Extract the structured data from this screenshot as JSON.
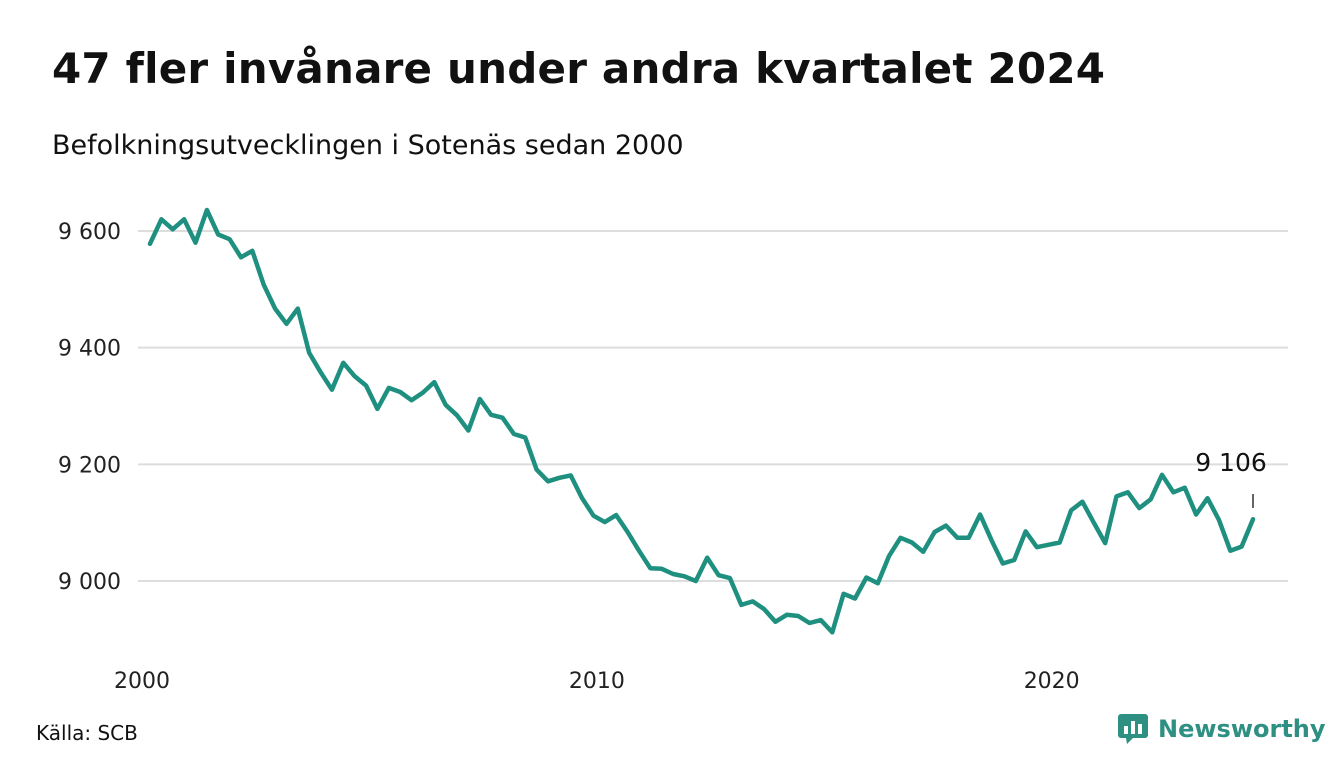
{
  "header": {
    "title": "47 fler invånare under andra kvartalet 2024",
    "subtitle": "Befolkningsutvecklingen i Sotenäs sedan 2000"
  },
  "footer": {
    "source": "Källa: SCB",
    "brand": "Newsworthy"
  },
  "colors": {
    "line": "#1f9080",
    "grid": "#dddddd",
    "brand": "#2e8f83"
  },
  "icons": {
    "brand_logo": "newsworthy-logo-icon"
  },
  "chart_data": {
    "type": "line",
    "x_start_year": 2000,
    "x_quarter_step": 0.25,
    "ylim": [
      8890,
      9660
    ],
    "y_ticks": [
      9000,
      9200,
      9400,
      9600
    ],
    "y_tick_labels": [
      "9 000",
      "9 200",
      "9 400",
      "9 600"
    ],
    "x_ticks": [
      2000,
      2010,
      2020
    ],
    "x_tick_labels": [
      "2000",
      "2010",
      "2020"
    ],
    "grid": true,
    "last_value_label": "9 106",
    "values": [
      9578,
      9620,
      9603,
      9620,
      9580,
      9636,
      9594,
      9586,
      9555,
      9566,
      9508,
      9467,
      9441,
      9467,
      9391,
      9358,
      9328,
      9374,
      9351,
      9335,
      9295,
      9331,
      9324,
      9310,
      9323,
      9341,
      9302,
      9284,
      9258,
      9312,
      9285,
      9280,
      9252,
      9246,
      9191,
      9171,
      9177,
      9181,
      9142,
      9112,
      9101,
      9113,
      9084,
      9052,
      9022,
      9021,
      9012,
      9008,
      9000,
      9040,
      9010,
      9005,
      8959,
      8965,
      8952,
      8930,
      8942,
      8940,
      8928,
      8933,
      8912,
      8978,
      8970,
      9006,
      8996,
      9043,
      9074,
      9066,
      9050,
      9084,
      9095,
      9074,
      9074,
      9114,
      9070,
      9030,
      9036,
      9085,
      9058,
      9062,
      9066,
      9121,
      9136,
      9100,
      9065,
      9145,
      9152,
      9125,
      9140,
      9182,
      9152,
      9160,
      9114,
      9142,
      9105,
      9052,
      9059,
      9106
    ]
  }
}
